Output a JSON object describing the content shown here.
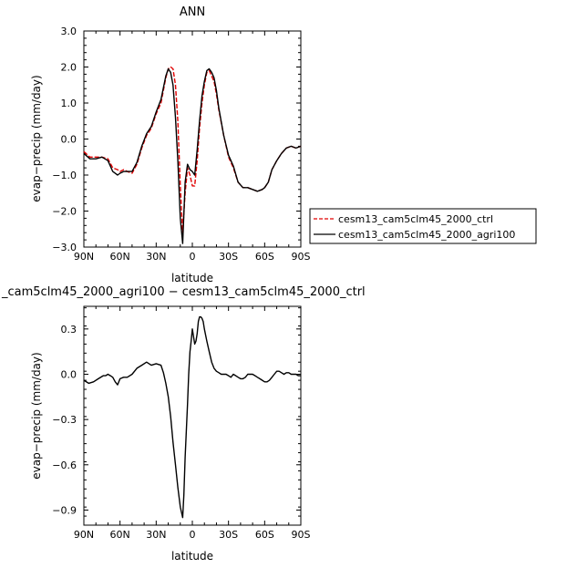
{
  "chart_data": [
    {
      "type": "line",
      "title": "ANN",
      "xlabel": "latitude",
      "ylabel": "evap−precip (mm/day)",
      "xlim": [
        -90,
        90
      ],
      "ylim": [
        -3.0,
        3.0
      ],
      "x_ticks": [
        -90,
        -60,
        -30,
        0,
        30,
        60,
        90
      ],
      "x_tick_labels": [
        "90N",
        "60N",
        "30N",
        "0",
        "30S",
        "60S",
        "90S"
      ],
      "y_ticks": [
        -3.0,
        -2.0,
        -1.0,
        0.0,
        1.0,
        2.0,
        3.0
      ],
      "y_tick_labels": [
        "−3.0",
        "−2.0",
        "−1.0",
        "0.0",
        "1.0",
        "2.0",
        "3.0"
      ],
      "legend_position": "right",
      "series": [
        {
          "name": "cesm13_cam5clm45_2000_ctrl",
          "color": "#e00000",
          "dash": "dashed",
          "x": [
            -90,
            -85,
            -80,
            -75,
            -70,
            -66,
            -62,
            -60,
            -57,
            -54,
            -50,
            -46,
            -42,
            -38,
            -34,
            -30,
            -26,
            -22,
            -20,
            -18,
            -16,
            -14,
            -12,
            -10,
            -8,
            -6,
            -4,
            -2,
            0,
            2,
            4,
            6,
            8,
            10,
            12,
            14,
            16,
            18,
            20,
            22,
            26,
            30,
            34,
            38,
            42,
            46,
            50,
            54,
            58,
            60,
            63,
            66,
            70,
            74,
            78,
            82,
            86,
            90
          ],
          "y": [
            -0.35,
            -0.5,
            -0.5,
            -0.5,
            -0.55,
            -0.8,
            -0.85,
            -0.9,
            -0.85,
            -0.9,
            -0.95,
            -0.7,
            -0.25,
            0.1,
            0.3,
            0.7,
            1.0,
            1.7,
            1.95,
            2.0,
            1.95,
            1.5,
            0.5,
            -1.3,
            -2.6,
            -1.5,
            -0.8,
            -1.0,
            -1.3,
            -1.3,
            -0.6,
            0.3,
            1.0,
            1.5,
            1.85,
            1.9,
            1.75,
            1.6,
            1.25,
            0.8,
            0.1,
            -0.5,
            -0.8,
            -1.2,
            -1.35,
            -1.35,
            -1.4,
            -1.45,
            -1.4,
            -1.35,
            -1.2,
            -0.85,
            -0.6,
            -0.4,
            -0.25,
            -0.2,
            -0.25,
            -0.2
          ]
        },
        {
          "name": "cesm13_cam5clm45_2000_agri100",
          "color": "#000000",
          "dash": "solid",
          "x": [
            -90,
            -85,
            -80,
            -75,
            -70,
            -66,
            -62,
            -60,
            -57,
            -54,
            -50,
            -46,
            -42,
            -38,
            -34,
            -30,
            -26,
            -22,
            -20,
            -18,
            -16,
            -14,
            -12,
            -10,
            -8,
            -6,
            -4,
            -2,
            0,
            2,
            4,
            6,
            8,
            10,
            12,
            14,
            16,
            18,
            20,
            22,
            26,
            30,
            34,
            38,
            42,
            46,
            50,
            54,
            58,
            60,
            63,
            66,
            70,
            74,
            78,
            82,
            86,
            90
          ],
          "y": [
            -0.4,
            -0.55,
            -0.55,
            -0.5,
            -0.6,
            -0.9,
            -1.0,
            -0.95,
            -0.9,
            -0.9,
            -0.9,
            -0.65,
            -0.2,
            0.15,
            0.35,
            0.75,
            1.1,
            1.75,
            1.95,
            1.85,
            1.5,
            0.6,
            -0.6,
            -2.2,
            -2.9,
            -1.2,
            -0.7,
            -0.85,
            -0.9,
            -1.0,
            -0.3,
            0.5,
            1.2,
            1.6,
            1.9,
            1.95,
            1.85,
            1.7,
            1.35,
            0.85,
            0.1,
            -0.45,
            -0.75,
            -1.2,
            -1.35,
            -1.35,
            -1.4,
            -1.45,
            -1.4,
            -1.35,
            -1.2,
            -0.85,
            -0.6,
            -0.4,
            -0.25,
            -0.2,
            -0.25,
            -0.2
          ]
        }
      ]
    },
    {
      "type": "line",
      "title": "_cam5clm45_2000_agri100 − cesm13_cam5clm45_2000_ctrl",
      "xlabel": "latitude",
      "ylabel": "evap−precip (mm/day)",
      "xlim": [
        -90,
        90
      ],
      "ylim": [
        -1.0,
        0.45
      ],
      "x_ticks": [
        -90,
        -60,
        -30,
        0,
        30,
        60,
        90
      ],
      "x_tick_labels": [
        "90N",
        "60N",
        "30N",
        "0",
        "30S",
        "60S",
        "90S"
      ],
      "y_ticks": [
        -0.9,
        -0.6,
        -0.3,
        0.0,
        0.3
      ],
      "y_tick_labels": [
        "−0.9",
        "−0.6",
        "−0.3",
        "0.0",
        "0.3"
      ],
      "series": [
        {
          "color": "#000000",
          "dash": "solid",
          "x": [
            -90,
            -86,
            -82,
            -78,
            -74,
            -72,
            -70,
            -68,
            -66,
            -64,
            -62,
            -60,
            -57,
            -54,
            -50,
            -46,
            -42,
            -38,
            -34,
            -30,
            -26,
            -24,
            -22,
            -20,
            -18,
            -16,
            -14,
            -12,
            -10,
            -8,
            -7,
            -6,
            -4,
            -3,
            -2,
            -1,
            0,
            1,
            2,
            3,
            4,
            5,
            6,
            7,
            8,
            9,
            10,
            12,
            14,
            16,
            18,
            20,
            22,
            24,
            26,
            28,
            30,
            32,
            34,
            36,
            38,
            40,
            42,
            44,
            46,
            48,
            50,
            52,
            54,
            56,
            58,
            60,
            62,
            64,
            66,
            68,
            70,
            72,
            74,
            76,
            78,
            80,
            82,
            84,
            86,
            88,
            90
          ],
          "y": [
            -0.04,
            -0.06,
            -0.05,
            -0.03,
            -0.01,
            -0.01,
            0.0,
            -0.01,
            -0.02,
            -0.05,
            -0.07,
            -0.03,
            -0.02,
            -0.02,
            0.0,
            0.04,
            0.06,
            0.08,
            0.06,
            0.07,
            0.06,
            0.01,
            -0.06,
            -0.15,
            -0.28,
            -0.45,
            -0.6,
            -0.75,
            -0.88,
            -0.95,
            -0.8,
            -0.55,
            -0.2,
            0.0,
            0.15,
            0.22,
            0.3,
            0.25,
            0.2,
            0.22,
            0.27,
            0.35,
            0.38,
            0.38,
            0.37,
            0.35,
            0.3,
            0.22,
            0.15,
            0.08,
            0.04,
            0.02,
            0.01,
            0.0,
            0.0,
            0.0,
            -0.01,
            -0.02,
            0.0,
            -0.01,
            -0.02,
            -0.03,
            -0.03,
            -0.02,
            0.0,
            0.0,
            0.0,
            -0.01,
            -0.02,
            -0.03,
            -0.04,
            -0.05,
            -0.05,
            -0.04,
            -0.02,
            0.0,
            0.02,
            0.02,
            0.01,
            0.0,
            0.01,
            0.01,
            0.0,
            0.0,
            0.0,
            -0.01,
            -0.01
          ]
        }
      ]
    }
  ]
}
